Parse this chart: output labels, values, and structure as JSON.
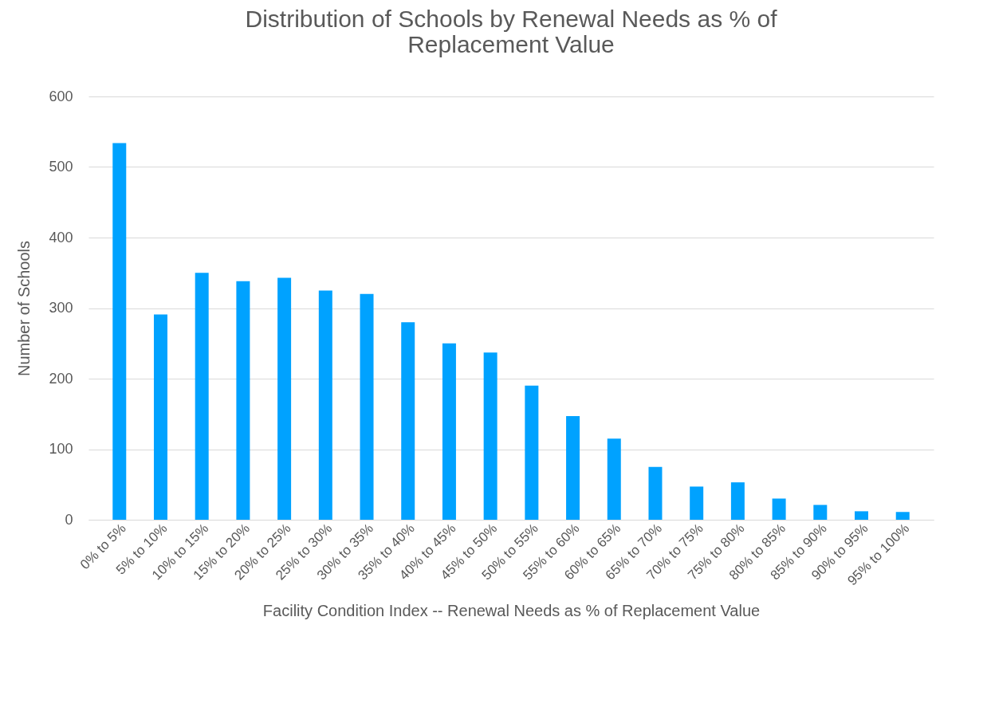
{
  "chart_data": {
    "type": "bar",
    "title": "Distribution of Schools by Renewal Needs as % of Replacement Value",
    "xlabel": "Facility Condition Index -- Renewal Needs as % of Replacement Value",
    "ylabel": "Number of Schools",
    "categories": [
      "0% to 5%",
      "5% to 10%",
      "10% to 15%",
      "15% to 20%",
      "20% to 25%",
      "25% to 30%",
      "30% to 35%",
      "35% to 40%",
      "40% to 45%",
      "45% to 50%",
      "50% to 55%",
      "55% to 60%",
      "60% to 65%",
      "65% to 70%",
      "70% to 75%",
      "75% to 80%",
      "80% to 85%",
      "85% to 90%",
      "90% to 95%",
      "95% to 100%"
    ],
    "values": [
      534,
      291,
      350,
      338,
      343,
      325,
      320,
      280,
      250,
      237,
      190,
      147,
      115,
      75,
      47,
      53,
      30,
      21,
      12,
      11
    ],
    "color": "#00a2ff",
    "ylim": [
      0,
      600
    ],
    "yticks": [
      0,
      100,
      200,
      300,
      400,
      500,
      600
    ],
    "grid": "y"
  }
}
